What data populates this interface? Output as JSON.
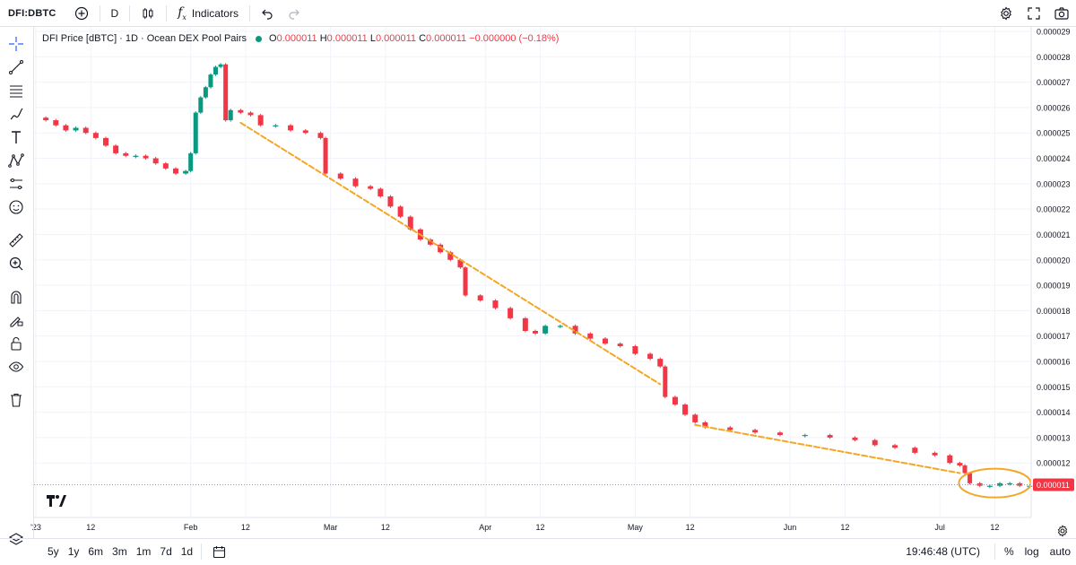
{
  "toolbar": {
    "symbol": "DFI:DBTC",
    "interval": "D",
    "indicators_label": "Indicators"
  },
  "legend": {
    "title": "DFI Price [dBTC] · 1D · Ocean DEX Pool Pairs",
    "o_label": "O",
    "o_value": "0.000011",
    "h_label": "H",
    "h_value": "0.000011",
    "l_label": "L",
    "l_value": "0.000011",
    "c_label": "C",
    "c_value": "0.000011",
    "change": "−0.000000 (−0.18%)"
  },
  "bottom": {
    "ranges": [
      "5y",
      "1y",
      "6m",
      "3m",
      "1m",
      "7d",
      "1d"
    ],
    "time": "19:46:48 (UTC)",
    "percent": "%",
    "log": "log",
    "auto": "auto"
  },
  "colors": {
    "up": "#089981",
    "down": "#f23645",
    "trendline": "#f5a623",
    "grid": "#f0f3fa"
  },
  "chart_data": {
    "type": "candlestick",
    "x_axis_ticks": [
      "2023",
      "12",
      "Feb",
      "12",
      "Mar",
      "12",
      "Apr",
      "12",
      "May",
      "12",
      "Jun",
      "12",
      "Jul",
      "12"
    ],
    "x_tick_dates": [
      "2023-01-01",
      "2023-01-12",
      "2023-02-01",
      "2023-02-12",
      "2023-03-01",
      "2023-03-12",
      "2023-04-01",
      "2023-04-12",
      "2023-05-01",
      "2023-05-12",
      "2023-06-01",
      "2023-06-12",
      "2023-07-01",
      "2023-07-12"
    ],
    "x_tick_display": [
      "'23",
      "12",
      "Feb",
      "12",
      "Mar",
      "12",
      "Apr",
      "12",
      "May",
      "12",
      "Jun",
      "12",
      "Jul",
      "12"
    ],
    "y_axis_ticks": [
      "0.000029",
      "0.000028",
      "0.000027",
      "0.000026",
      "0.000025",
      "0.000024",
      "0.000023",
      "0.000022",
      "0.000021",
      "0.000020",
      "0.000019",
      "0.000018",
      "0.000017",
      "0.000016",
      "0.000015",
      "0.000014",
      "0.000013",
      "0.000012"
    ],
    "ylim": [
      1.07e-05,
      2.9e-05
    ],
    "last_price": "0.000011",
    "close_series": {
      "name": "",
      "points": [
        [
          "2023-01-01",
          2.56e-05
        ],
        [
          "2023-01-03",
          2.55e-05
        ],
        [
          "2023-01-05",
          2.53e-05
        ],
        [
          "2023-01-07",
          2.51e-05
        ],
        [
          "2023-01-09",
          2.52e-05
        ],
        [
          "2023-01-11",
          2.5e-05
        ],
        [
          "2023-01-13",
          2.48e-05
        ],
        [
          "2023-01-15",
          2.45e-05
        ],
        [
          "2023-01-17",
          2.42e-05
        ],
        [
          "2023-01-19",
          2.41e-05
        ],
        [
          "2023-01-21",
          2.41e-05
        ],
        [
          "2023-01-23",
          2.4e-05
        ],
        [
          "2023-01-25",
          2.38e-05
        ],
        [
          "2023-01-27",
          2.36e-05
        ],
        [
          "2023-01-29",
          2.34e-05
        ],
        [
          "2023-01-31",
          2.35e-05
        ],
        [
          "2023-02-01",
          2.42e-05
        ],
        [
          "2023-02-02",
          2.58e-05
        ],
        [
          "2023-02-03",
          2.64e-05
        ],
        [
          "2023-02-04",
          2.68e-05
        ],
        [
          "2023-02-05",
          2.73e-05
        ],
        [
          "2023-02-06",
          2.76e-05
        ],
        [
          "2023-02-07",
          2.77e-05
        ],
        [
          "2023-02-08",
          2.55e-05
        ],
        [
          "2023-02-09",
          2.59e-05
        ],
        [
          "2023-02-11",
          2.58e-05
        ],
        [
          "2023-02-13",
          2.57e-05
        ],
        [
          "2023-02-15",
          2.53e-05
        ],
        [
          "2023-02-18",
          2.53e-05
        ],
        [
          "2023-02-21",
          2.51e-05
        ],
        [
          "2023-02-24",
          2.5e-05
        ],
        [
          "2023-02-27",
          2.48e-05
        ],
        [
          "2023-02-28",
          2.34e-05
        ],
        [
          "2023-03-03",
          2.32e-05
        ],
        [
          "2023-03-06",
          2.29e-05
        ],
        [
          "2023-03-09",
          2.28e-05
        ],
        [
          "2023-03-11",
          2.25e-05
        ],
        [
          "2023-03-13",
          2.21e-05
        ],
        [
          "2023-03-15",
          2.17e-05
        ],
        [
          "2023-03-17",
          2.12e-05
        ],
        [
          "2023-03-19",
          2.08e-05
        ],
        [
          "2023-03-21",
          2.06e-05
        ],
        [
          "2023-03-23",
          2.03e-05
        ],
        [
          "2023-03-25",
          2e-05
        ],
        [
          "2023-03-27",
          1.97e-05
        ],
        [
          "2023-03-28",
          1.86e-05
        ],
        [
          "2023-03-31",
          1.84e-05
        ],
        [
          "2023-04-03",
          1.81e-05
        ],
        [
          "2023-04-06",
          1.77e-05
        ],
        [
          "2023-04-09",
          1.72e-05
        ],
        [
          "2023-04-11",
          1.71e-05
        ],
        [
          "2023-04-13",
          1.74e-05
        ],
        [
          "2023-04-16",
          1.74e-05
        ],
        [
          "2023-04-19",
          1.71e-05
        ],
        [
          "2023-04-22",
          1.69e-05
        ],
        [
          "2023-04-25",
          1.67e-05
        ],
        [
          "2023-04-28",
          1.66e-05
        ],
        [
          "2023-05-01",
          1.63e-05
        ],
        [
          "2023-05-04",
          1.61e-05
        ],
        [
          "2023-05-06",
          1.58e-05
        ],
        [
          "2023-05-07",
          1.46e-05
        ],
        [
          "2023-05-09",
          1.43e-05
        ],
        [
          "2023-05-11",
          1.39e-05
        ],
        [
          "2023-05-13",
          1.36e-05
        ],
        [
          "2023-05-15",
          1.34e-05
        ],
        [
          "2023-05-20",
          1.33e-05
        ],
        [
          "2023-05-25",
          1.32e-05
        ],
        [
          "2023-05-30",
          1.31e-05
        ],
        [
          "2023-06-04",
          1.31e-05
        ],
        [
          "2023-06-09",
          1.3e-05
        ],
        [
          "2023-06-14",
          1.29e-05
        ],
        [
          "2023-06-18",
          1.27e-05
        ],
        [
          "2023-06-22",
          1.26e-05
        ],
        [
          "2023-06-26",
          1.24e-05
        ],
        [
          "2023-06-30",
          1.23e-05
        ],
        [
          "2023-07-03",
          1.2e-05
        ],
        [
          "2023-07-05",
          1.19e-05
        ],
        [
          "2023-07-06",
          1.16e-05
        ],
        [
          "2023-07-07",
          1.12e-05
        ],
        [
          "2023-07-09",
          1.11e-05
        ],
        [
          "2023-07-11",
          1.11e-05
        ],
        [
          "2023-07-13",
          1.12e-05
        ],
        [
          "2023-07-15",
          1.12e-05
        ],
        [
          "2023-07-17",
          1.11e-05
        ],
        [
          "2023-07-19",
          1.11e-05
        ]
      ]
    },
    "annotations": [
      {
        "type": "trendline",
        "start": [
          "2023-02-11",
          2.54e-05
        ],
        "end": [
          "2023-05-06",
          1.51e-05
        ]
      },
      {
        "type": "trendline",
        "start": [
          "2023-05-13",
          1.35e-05
        ],
        "end": [
          "2023-07-05",
          1.16e-05
        ]
      },
      {
        "type": "ellipse",
        "center": [
          "2023-07-12",
          1.11e-05
        ]
      }
    ]
  }
}
